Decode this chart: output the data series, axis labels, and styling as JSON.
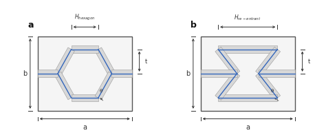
{
  "bg_color": "#ffffff",
  "cell_bg": "#f5f5f5",
  "cell_border": "#555555",
  "strut_fill": "#d8d8d8",
  "strut_border": "#999999",
  "blue_line": "#3366bb",
  "dim_color": "#333333",
  "panel_a": "a",
  "panel_b": "b",
  "label_H_hex": "$H_{hexagon}$",
  "label_H_re": "$H_{re-entrant}$",
  "label_a": "a",
  "label_b": "b",
  "label_t": "t",
  "label_theta": "θ"
}
